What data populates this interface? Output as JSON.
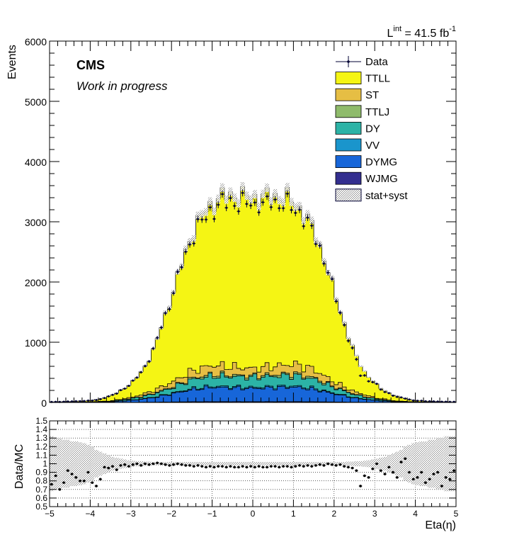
{
  "lumi": {
    "prefix": "L",
    "sup": "int",
    "value": " = 41.5 fb",
    "exp": "-1"
  },
  "cms_label": "CMS",
  "wip_label": "Work in progress",
  "chart_data": [
    {
      "type": "bar",
      "stacked": true,
      "xlabel": "",
      "ylabel": "Events",
      "xlim": [
        -5,
        5
      ],
      "ylim": [
        0,
        6000
      ],
      "yticks": [
        0,
        1000,
        2000,
        3000,
        4000,
        5000,
        6000
      ],
      "legend_position": "top-right",
      "legend": [
        {
          "name": "Data",
          "color": "#000033",
          "kind": "marker"
        },
        {
          "name": "TTLL",
          "color": "#f5f514",
          "kind": "fill"
        },
        {
          "name": "ST",
          "color": "#e6be44",
          "kind": "fill"
        },
        {
          "name": "TTLJ",
          "color": "#8fbb6b",
          "kind": "fill"
        },
        {
          "name": "DY",
          "color": "#2cb3a6",
          "kind": "fill"
        },
        {
          "name": "VV",
          "color": "#1a95cc",
          "kind": "fill"
        },
        {
          "name": "DYMG",
          "color": "#1766d9",
          "kind": "fill"
        },
        {
          "name": "WJMG",
          "color": "#332e8f",
          "kind": "fill"
        },
        {
          "name": "stat+syst",
          "color": "#9a9a9a",
          "kind": "hatch"
        }
      ],
      "bin_width": 0.1,
      "total_mc_knots": [
        [
          -5,
          10
        ],
        [
          -4.5,
          18
        ],
        [
          -4,
          35
        ],
        [
          -3.7,
          70
        ],
        [
          -3.4,
          140
        ],
        [
          -3.1,
          260
        ],
        [
          -2.8,
          450
        ],
        [
          -2.6,
          650
        ],
        [
          -2.4,
          950
        ],
        [
          -2.2,
          1350
        ],
        [
          -2.0,
          1750
        ],
        [
          -1.8,
          2200
        ],
        [
          -1.6,
          2600
        ],
        [
          -1.4,
          2950
        ],
        [
          -1.2,
          3150
        ],
        [
          -1.0,
          3300
        ],
        [
          -0.8,
          3420
        ],
        [
          -0.4,
          3450
        ],
        [
          0,
          3400
        ],
        [
          0.4,
          3430
        ],
        [
          0.8,
          3420
        ],
        [
          1.0,
          3320
        ],
        [
          1.2,
          3200
        ],
        [
          1.4,
          3000
        ],
        [
          1.6,
          2700
        ],
        [
          1.8,
          2300
        ],
        [
          2.0,
          1850
        ],
        [
          2.2,
          1420
        ],
        [
          2.4,
          1000
        ],
        [
          2.6,
          680
        ],
        [
          2.8,
          460
        ],
        [
          3.1,
          260
        ],
        [
          3.4,
          140
        ],
        [
          3.7,
          70
        ],
        [
          4,
          35
        ],
        [
          4.5,
          18
        ],
        [
          5,
          10
        ]
      ],
      "st_top_knots": [
        [
          -5,
          2
        ],
        [
          -4,
          10
        ],
        [
          -3.5,
          25
        ],
        [
          -3,
          80
        ],
        [
          -2.5,
          180
        ],
        [
          -2,
          330
        ],
        [
          -1.5,
          520
        ],
        [
          -1,
          620
        ],
        [
          0,
          560
        ],
        [
          1,
          640
        ],
        [
          1.5,
          550
        ],
        [
          2,
          340
        ],
        [
          2.5,
          180
        ],
        [
          3,
          80
        ],
        [
          3.5,
          25
        ],
        [
          4,
          10
        ],
        [
          5,
          2
        ]
      ],
      "dy_top_knots": [
        [
          -5,
          1
        ],
        [
          -4,
          6
        ],
        [
          -3.5,
          18
        ],
        [
          -3,
          60
        ],
        [
          -2.5,
          130
        ],
        [
          -2,
          240
        ],
        [
          -1.5,
          380
        ],
        [
          -1,
          440
        ],
        [
          0,
          420
        ],
        [
          1,
          450
        ],
        [
          1.5,
          390
        ],
        [
          2,
          250
        ],
        [
          2.5,
          130
        ],
        [
          3,
          60
        ],
        [
          3.5,
          18
        ],
        [
          4,
          6
        ],
        [
          5,
          1
        ]
      ],
      "vv_top_knots": [
        [
          -5,
          0
        ],
        [
          -4,
          3
        ],
        [
          -3.5,
          10
        ],
        [
          -3,
          35
        ],
        [
          -2.5,
          80
        ],
        [
          -2,
          150
        ],
        [
          -1.5,
          230
        ],
        [
          -1,
          270
        ],
        [
          0,
          250
        ],
        [
          1,
          275
        ],
        [
          1.5,
          235
        ],
        [
          2,
          155
        ],
        [
          2.5,
          80
        ],
        [
          3,
          35
        ],
        [
          3.5,
          10
        ],
        [
          4,
          3
        ],
        [
          5,
          0
        ]
      ],
      "data_scale": 0.985
    },
    {
      "type": "scatter",
      "xlabel": "Eta(η)",
      "ylabel": "Data/MC",
      "xlim": [
        -5,
        5
      ],
      "ylim": [
        0.5,
        1.5
      ],
      "xticks": [
        -5,
        -4,
        -3,
        -2,
        -1,
        0,
        1,
        2,
        3,
        4,
        5
      ],
      "xtick_labels": [
        "−5",
        "−4",
        "−3",
        "−2",
        "−1",
        "0",
        "1",
        "2",
        "3",
        "4",
        "5"
      ],
      "yticks": [
        0.5,
        0.6,
        0.7,
        0.8,
        0.9,
        1,
        1.1,
        1.2,
        1.3,
        1.4,
        1.5
      ],
      "ytick_labels": [
        "0.5",
        "0.6",
        "0.7",
        "0.8",
        "0.9",
        "1",
        "1.1",
        "1.2",
        "1.3",
        "1.4",
        "1.5"
      ],
      "grid": true,
      "ratio": [
        0.76,
        0.86,
        0.7,
        0.78,
        0.92,
        0.88,
        0.84,
        0.8,
        0.8,
        0.9,
        0.78,
        0.74,
        0.82,
        0.96,
        0.95,
        0.97,
        0.93,
        0.98,
        0.99,
        0.97,
        0.99,
        1.0,
        0.98,
        1.0,
        0.99,
        1.0,
        1.01,
        1.0,
        0.99,
        0.98,
        0.99,
        1.0,
        0.99,
        0.98,
        0.98,
        0.97,
        0.98,
        0.97,
        0.96,
        0.97,
        0.96,
        0.97,
        0.97,
        0.96,
        0.97,
        0.96,
        0.96,
        0.97,
        0.96,
        0.97,
        0.96,
        0.97,
        0.96,
        0.96,
        0.97,
        0.97,
        0.96,
        0.97,
        0.97,
        0.96,
        0.97,
        0.98,
        0.97,
        0.98,
        0.97,
        0.98,
        0.99,
        0.98,
        1.0,
        0.99,
        0.98,
        0.99,
        0.97,
        0.96,
        0.95,
        0.92,
        0.74,
        0.86,
        0.84,
        0.94,
        1.0,
        0.92,
        0.88,
        0.96,
        0.9,
        0.84,
        1.02,
        1.06,
        0.9,
        0.82,
        0.84,
        0.9,
        0.78,
        0.82,
        0.88,
        0.9,
        0.74,
        0.84,
        0.82,
        0.92
      ],
      "band_halfwidth": [
        0.32,
        0.3,
        0.3,
        0.28,
        0.28,
        0.26,
        0.26,
        0.25,
        0.24,
        0.22,
        0.2,
        0.16,
        0.14,
        0.12,
        0.1,
        0.08,
        0.07,
        0.06,
        0.05,
        0.04,
        0.035,
        0.03,
        0.03,
        0.025,
        0.025,
        0.02,
        0.02,
        0.02,
        0.02,
        0.02,
        0.02,
        0.02,
        0.02,
        0.02,
        0.02,
        0.02,
        0.02,
        0.02,
        0.02,
        0.02,
        0.02,
        0.02,
        0.02,
        0.02,
        0.02,
        0.02,
        0.02,
        0.02,
        0.02,
        0.02,
        0.02,
        0.02,
        0.02,
        0.02,
        0.02,
        0.02,
        0.02,
        0.02,
        0.02,
        0.02,
        0.02,
        0.02,
        0.02,
        0.02,
        0.02,
        0.02,
        0.02,
        0.02,
        0.02,
        0.02,
        0.02,
        0.02,
        0.02,
        0.025,
        0.025,
        0.03,
        0.03,
        0.035,
        0.04,
        0.05,
        0.06,
        0.07,
        0.08,
        0.1,
        0.12,
        0.14,
        0.16,
        0.2,
        0.22,
        0.24,
        0.25,
        0.26,
        0.26,
        0.28,
        0.28,
        0.3,
        0.3,
        0.32,
        0.32,
        0.32
      ]
    }
  ]
}
